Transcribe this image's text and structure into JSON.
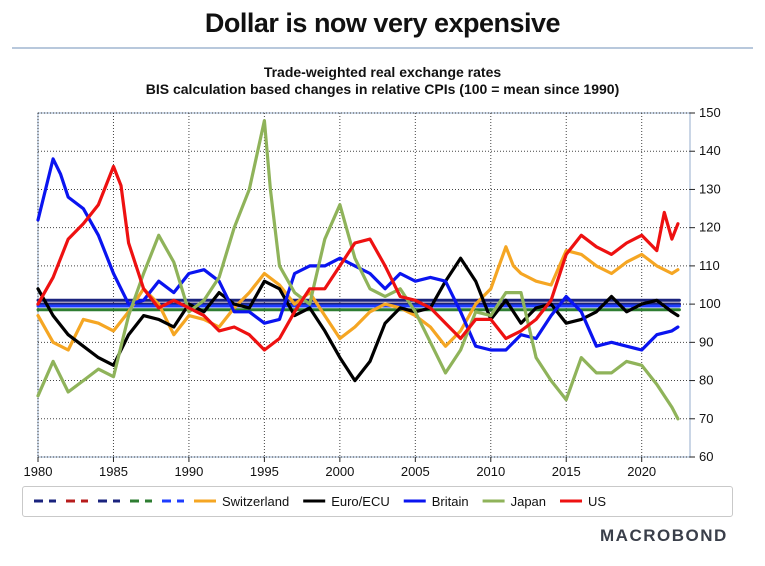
{
  "page_title": "Dollar is now very expensive",
  "brand": "MACROBOND",
  "chart_data": {
    "type": "line",
    "title": "Trade-weighted real exchange rates",
    "subtitle": "BIS calculation based changes in relative CPIs (100 = mean since 1990)",
    "xlabel": "",
    "ylabel": "",
    "xlim": [
      1980,
      2023.2
    ],
    "ylim": [
      60,
      150
    ],
    "x_ticks": [
      1980,
      1985,
      1990,
      1995,
      2000,
      2005,
      2010,
      2015,
      2020
    ],
    "y_ticks": [
      60,
      70,
      80,
      90,
      100,
      110,
      120,
      130,
      140,
      150
    ],
    "y_axis_side": "right",
    "grid": true,
    "legend_position": "bottom",
    "series": [
      {
        "name": "",
        "color": "#1a237e",
        "dash": true,
        "points": [
          [
            1980,
            101
          ],
          [
            2022.5,
            101
          ]
        ]
      },
      {
        "name": "",
        "color": "#b71c1c",
        "dash": true,
        "points": [
          [
            1980,
            100
          ],
          [
            2022.5,
            100
          ]
        ]
      },
      {
        "name": "",
        "color": "#1a237e",
        "dash": true,
        "points": [
          [
            1980,
            100
          ],
          [
            2022.5,
            100
          ]
        ]
      },
      {
        "name": "",
        "color": "#2e7d32",
        "dash": true,
        "points": [
          [
            1980,
            98.5
          ],
          [
            2022.5,
            98.5
          ]
        ]
      },
      {
        "name": "",
        "color": "#1e3cff",
        "dash": true,
        "points": [
          [
            1980,
            99.5
          ],
          [
            2022.5,
            99.5
          ]
        ]
      },
      {
        "name": "Switzerland",
        "color": "#f5a623",
        "dash": false,
        "points": [
          [
            1980,
            97
          ],
          [
            1981,
            90
          ],
          [
            1982,
            88
          ],
          [
            1983,
            96
          ],
          [
            1984,
            95
          ],
          [
            1985,
            93
          ],
          [
            1986,
            98
          ],
          [
            1987,
            104
          ],
          [
            1988,
            100
          ],
          [
            1989,
            92
          ],
          [
            1990,
            97
          ],
          [
            1991,
            96
          ],
          [
            1992,
            94
          ],
          [
            1993,
            99
          ],
          [
            1994,
            103
          ],
          [
            1995,
            108
          ],
          [
            1996,
            105
          ],
          [
            1997,
            100
          ],
          [
            1998,
            103
          ],
          [
            1999,
            97
          ],
          [
            2000,
            91
          ],
          [
            2001,
            94
          ],
          [
            2002,
            98
          ],
          [
            2003,
            100
          ],
          [
            2004,
            99
          ],
          [
            2005,
            97
          ],
          [
            2006,
            94
          ],
          [
            2007,
            89
          ],
          [
            2008,
            93
          ],
          [
            2009,
            100
          ],
          [
            2010,
            104
          ],
          [
            2011,
            115
          ],
          [
            2011.5,
            110
          ],
          [
            2012,
            108
          ],
          [
            2013,
            106
          ],
          [
            2014,
            105
          ],
          [
            2015,
            114
          ],
          [
            2016,
            113
          ],
          [
            2017,
            110
          ],
          [
            2018,
            108
          ],
          [
            2019,
            111
          ],
          [
            2020,
            113
          ],
          [
            2021,
            110
          ],
          [
            2022,
            108
          ],
          [
            2022.4,
            109
          ]
        ]
      },
      {
        "name": "Euro/ECU",
        "color": "#000000",
        "dash": false,
        "points": [
          [
            1980,
            104
          ],
          [
            1981,
            97
          ],
          [
            1982,
            92
          ],
          [
            1983,
            89
          ],
          [
            1984,
            86
          ],
          [
            1985,
            84
          ],
          [
            1986,
            92
          ],
          [
            1987,
            97
          ],
          [
            1988,
            96
          ],
          [
            1989,
            94
          ],
          [
            1990,
            100
          ],
          [
            1991,
            98
          ],
          [
            1992,
            103
          ],
          [
            1993,
            100
          ],
          [
            1994,
            99
          ],
          [
            1995,
            106
          ],
          [
            1996,
            104
          ],
          [
            1997,
            97
          ],
          [
            1998,
            99
          ],
          [
            1999,
            93
          ],
          [
            2000,
            86
          ],
          [
            2001,
            80
          ],
          [
            2002,
            85
          ],
          [
            2003,
            95
          ],
          [
            2004,
            99
          ],
          [
            2005,
            98
          ],
          [
            2006,
            99
          ],
          [
            2007,
            106
          ],
          [
            2008,
            112
          ],
          [
            2009,
            106
          ],
          [
            2010,
            96
          ],
          [
            2011,
            101
          ],
          [
            2012,
            95
          ],
          [
            2013,
            99
          ],
          [
            2014,
            100
          ],
          [
            2015,
            95
          ],
          [
            2016,
            96
          ],
          [
            2017,
            98
          ],
          [
            2018,
            102
          ],
          [
            2019,
            98
          ],
          [
            2020,
            100
          ],
          [
            2021,
            101
          ],
          [
            2022,
            98
          ],
          [
            2022.4,
            97
          ]
        ]
      },
      {
        "name": "Britain",
        "color": "#0a14f0",
        "dash": false,
        "points": [
          [
            1980,
            122
          ],
          [
            1981,
            138
          ],
          [
            1981.5,
            134
          ],
          [
            1982,
            128
          ],
          [
            1983,
            125
          ],
          [
            1984,
            118
          ],
          [
            1985,
            108
          ],
          [
            1986,
            100
          ],
          [
            1987,
            101
          ],
          [
            1988,
            106
          ],
          [
            1989,
            103
          ],
          [
            1990,
            108
          ],
          [
            1991,
            109
          ],
          [
            1992,
            106
          ],
          [
            1993,
            98
          ],
          [
            1994,
            98
          ],
          [
            1995,
            95
          ],
          [
            1996,
            96
          ],
          [
            1997,
            108
          ],
          [
            1998,
            110
          ],
          [
            1999,
            110
          ],
          [
            2000,
            112
          ],
          [
            2001,
            110
          ],
          [
            2002,
            108
          ],
          [
            2003,
            104
          ],
          [
            2004,
            108
          ],
          [
            2005,
            106
          ],
          [
            2006,
            107
          ],
          [
            2007,
            106
          ],
          [
            2008,
            98
          ],
          [
            2009,
            89
          ],
          [
            2010,
            88
          ],
          [
            2011,
            88
          ],
          [
            2012,
            92
          ],
          [
            2013,
            91
          ],
          [
            2014,
            97
          ],
          [
            2015,
            102
          ],
          [
            2016,
            98
          ],
          [
            2017,
            89
          ],
          [
            2018,
            90
          ],
          [
            2019,
            89
          ],
          [
            2020,
            88
          ],
          [
            2021,
            92
          ],
          [
            2022,
            93
          ],
          [
            2022.4,
            94
          ]
        ]
      },
      {
        "name": "Japan",
        "color": "#8fb35a",
        "dash": false,
        "points": [
          [
            1980,
            76
          ],
          [
            1981,
            85
          ],
          [
            1982,
            77
          ],
          [
            1983,
            80
          ],
          [
            1984,
            83
          ],
          [
            1985,
            81
          ],
          [
            1986,
            97
          ],
          [
            1987,
            108
          ],
          [
            1988,
            118
          ],
          [
            1989,
            111
          ],
          [
            1990,
            98
          ],
          [
            1991,
            101
          ],
          [
            1992,
            107
          ],
          [
            1993,
            120
          ],
          [
            1994,
            130
          ],
          [
            1995,
            148
          ],
          [
            1995.4,
            130
          ],
          [
            1996,
            110
          ],
          [
            1997,
            103
          ],
          [
            1998,
            100
          ],
          [
            1999,
            117
          ],
          [
            2000,
            126
          ],
          [
            2001,
            112
          ],
          [
            2002,
            104
          ],
          [
            2003,
            102
          ],
          [
            2004,
            104
          ],
          [
            2005,
            98
          ],
          [
            2006,
            90
          ],
          [
            2007,
            82
          ],
          [
            2008,
            88
          ],
          [
            2009,
            98
          ],
          [
            2010,
            97
          ],
          [
            2011,
            103
          ],
          [
            2012,
            103
          ],
          [
            2013,
            86
          ],
          [
            2014,
            80
          ],
          [
            2015,
            75
          ],
          [
            2016,
            86
          ],
          [
            2017,
            82
          ],
          [
            2018,
            82
          ],
          [
            2019,
            85
          ],
          [
            2020,
            84
          ],
          [
            2021,
            79
          ],
          [
            2022,
            73
          ],
          [
            2022.4,
            70
          ]
        ]
      },
      {
        "name": "US",
        "color": "#ee1111",
        "dash": false,
        "points": [
          [
            1980,
            100
          ],
          [
            1981,
            107
          ],
          [
            1982,
            117
          ],
          [
            1983,
            121
          ],
          [
            1984,
            126
          ],
          [
            1985,
            136
          ],
          [
            1985.5,
            131
          ],
          [
            1986,
            116
          ],
          [
            1987,
            104
          ],
          [
            1988,
            99
          ],
          [
            1989,
            101
          ],
          [
            1990,
            99
          ],
          [
            1991,
            97
          ],
          [
            1992,
            93
          ],
          [
            1993,
            94
          ],
          [
            1994,
            92
          ],
          [
            1995,
            88
          ],
          [
            1996,
            91
          ],
          [
            1997,
            98
          ],
          [
            1998,
            104
          ],
          [
            1999,
            104
          ],
          [
            2000,
            110
          ],
          [
            2001,
            116
          ],
          [
            2002,
            117
          ],
          [
            2003,
            110
          ],
          [
            2004,
            102
          ],
          [
            2005,
            101
          ],
          [
            2006,
            99
          ],
          [
            2007,
            95
          ],
          [
            2008,
            91
          ],
          [
            2009,
            96
          ],
          [
            2010,
            96
          ],
          [
            2011,
            91
          ],
          [
            2012,
            93
          ],
          [
            2013,
            96
          ],
          [
            2014,
            101
          ],
          [
            2015,
            113
          ],
          [
            2016,
            118
          ],
          [
            2017,
            115
          ],
          [
            2018,
            113
          ],
          [
            2019,
            116
          ],
          [
            2020,
            118
          ],
          [
            2021,
            114
          ],
          [
            2021.5,
            124
          ],
          [
            2022,
            117
          ],
          [
            2022.4,
            121
          ]
        ]
      }
    ]
  }
}
